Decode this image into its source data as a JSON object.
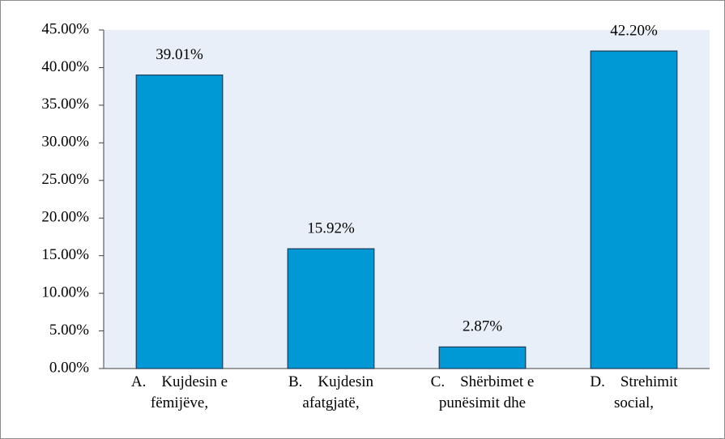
{
  "chart_data": {
    "type": "bar",
    "categories": [
      "A.    Kujdesin e\nfëmijëve,",
      "B.    Kujdesin\nafatgjatë,",
      "C.    Shërbimet e\npunësimit dhe",
      "D.    Strehimit\nsocial,"
    ],
    "values": [
      39.01,
      15.92,
      2.87,
      42.2
    ],
    "value_labels": [
      "39.01%",
      "15.92%",
      "2.87%",
      "42.20%"
    ],
    "color": "#0099d6",
    "ylim": [
      0,
      45
    ],
    "yticks": [
      {
        "value": 0,
        "label": "0.00%"
      },
      {
        "value": 5,
        "label": "5.00%"
      },
      {
        "value": 10,
        "label": "10.00%"
      },
      {
        "value": 15,
        "label": "15.00%"
      },
      {
        "value": 20,
        "label": "20.00%"
      },
      {
        "value": 25,
        "label": "25.00%"
      },
      {
        "value": 30,
        "label": "30.00%"
      },
      {
        "value": 35,
        "label": "35.00%"
      },
      {
        "value": 40,
        "label": "40.00%"
      },
      {
        "value": 45,
        "label": "45.00%"
      }
    ],
    "grid": false
  }
}
